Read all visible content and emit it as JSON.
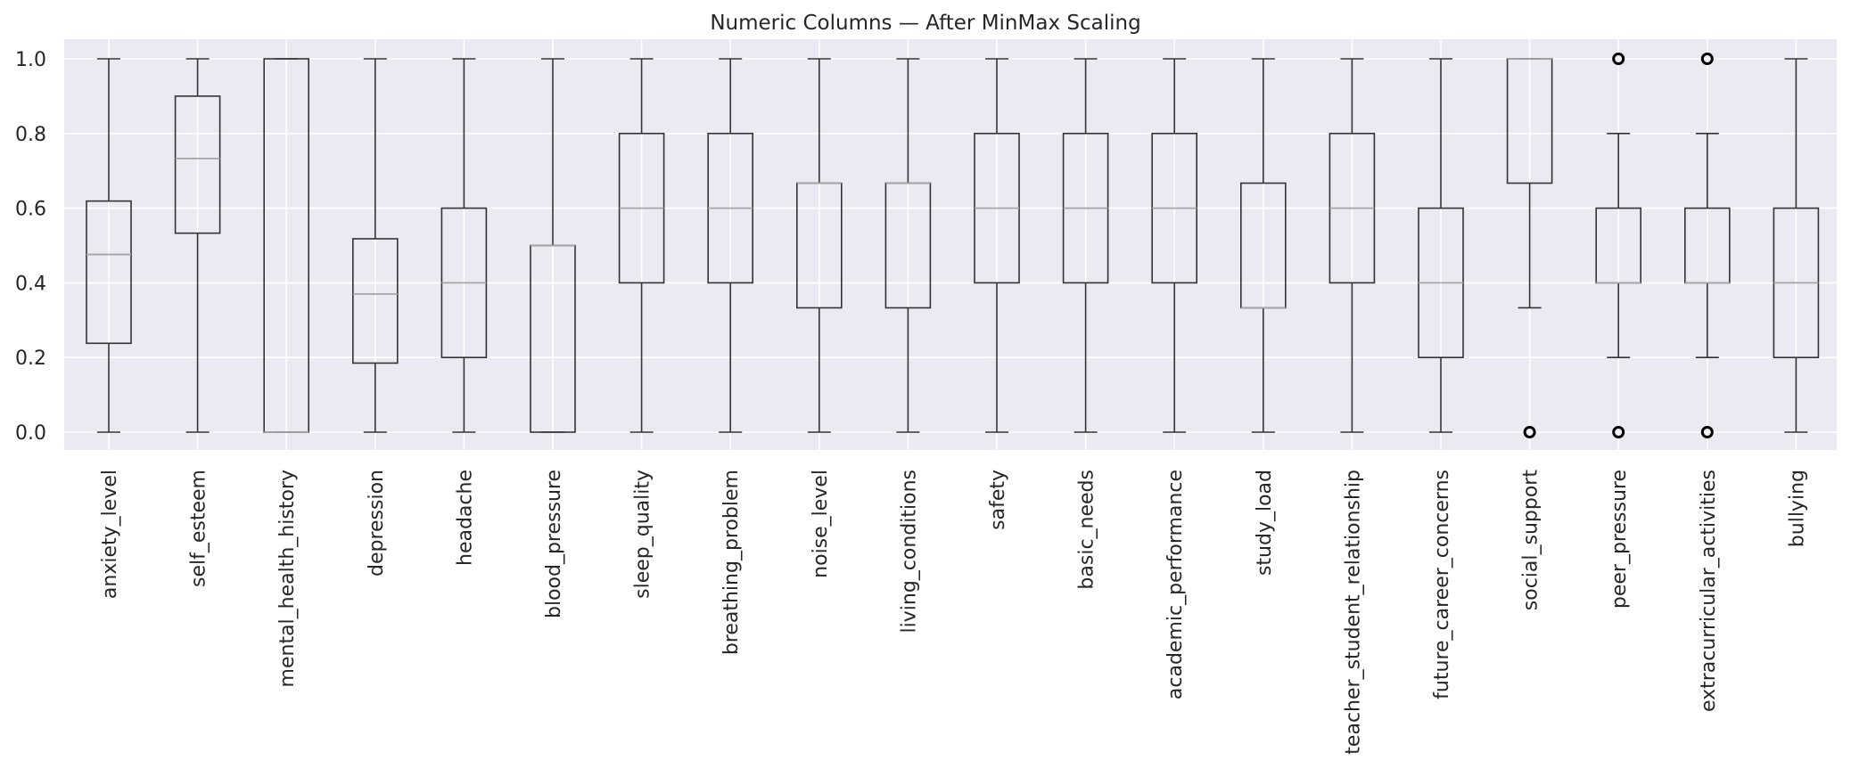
{
  "chart_data": {
    "type": "box",
    "title": "Numeric Columns — After MinMax Scaling",
    "xlabel": "",
    "ylabel": "",
    "ylim": [
      -0.05,
      1.05
    ],
    "yticks": [
      "0.0",
      "0.2",
      "0.4",
      "0.6",
      "0.8",
      "1.0"
    ],
    "ytick_values": [
      0.0,
      0.2,
      0.4,
      0.6,
      0.8,
      1.0
    ],
    "grid": true,
    "style": {
      "background": "#eaeaf2",
      "grid": "#ffffff",
      "box": "#333333",
      "median": "#a6a6a6"
    },
    "series": [
      {
        "category": "anxiety_level",
        "whislo": 0.0,
        "q1": 0.238,
        "median": 0.476,
        "q3": 0.619,
        "whishi": 1.0,
        "fliers": []
      },
      {
        "category": "self_esteem",
        "whislo": 0.0,
        "q1": 0.533,
        "median": 0.733,
        "q3": 0.9,
        "whishi": 1.0,
        "fliers": []
      },
      {
        "category": "mental_health_history",
        "whislo": 0.0,
        "q1": 0.0,
        "median": 0.0,
        "q3": 1.0,
        "whishi": 1.0,
        "fliers": []
      },
      {
        "category": "depression",
        "whislo": 0.0,
        "q1": 0.185,
        "median": 0.37,
        "q3": 0.518,
        "whishi": 1.0,
        "fliers": []
      },
      {
        "category": "headache",
        "whislo": 0.0,
        "q1": 0.2,
        "median": 0.4,
        "q3": 0.6,
        "whishi": 1.0,
        "fliers": []
      },
      {
        "category": "blood_pressure",
        "whislo": 0.0,
        "q1": 0.0,
        "median": 0.5,
        "q3": 0.5,
        "whishi": 1.0,
        "fliers": []
      },
      {
        "category": "sleep_quality",
        "whislo": 0.0,
        "q1": 0.4,
        "median": 0.6,
        "q3": 0.8,
        "whishi": 1.0,
        "fliers": []
      },
      {
        "category": "breathing_problem",
        "whislo": 0.0,
        "q1": 0.4,
        "median": 0.6,
        "q3": 0.8,
        "whishi": 1.0,
        "fliers": []
      },
      {
        "category": "noise_level",
        "whislo": 0.0,
        "q1": 0.333,
        "median": 0.667,
        "q3": 0.667,
        "whishi": 1.0,
        "fliers": []
      },
      {
        "category": "living_conditions",
        "whislo": 0.0,
        "q1": 0.333,
        "median": 0.667,
        "q3": 0.667,
        "whishi": 1.0,
        "fliers": []
      },
      {
        "category": "safety",
        "whislo": 0.0,
        "q1": 0.4,
        "median": 0.6,
        "q3": 0.8,
        "whishi": 1.0,
        "fliers": []
      },
      {
        "category": "basic_needs",
        "whislo": 0.0,
        "q1": 0.4,
        "median": 0.6,
        "q3": 0.8,
        "whishi": 1.0,
        "fliers": []
      },
      {
        "category": "academic_performance",
        "whislo": 0.0,
        "q1": 0.4,
        "median": 0.6,
        "q3": 0.8,
        "whishi": 1.0,
        "fliers": []
      },
      {
        "category": "study_load",
        "whislo": 0.0,
        "q1": 0.333,
        "median": 0.333,
        "q3": 0.667,
        "whishi": 1.0,
        "fliers": []
      },
      {
        "category": "teacher_student_relationship",
        "whislo": 0.0,
        "q1": 0.4,
        "median": 0.6,
        "q3": 0.8,
        "whishi": 1.0,
        "fliers": []
      },
      {
        "category": "future_career_concerns",
        "whislo": 0.0,
        "q1": 0.2,
        "median": 0.4,
        "q3": 0.6,
        "whishi": 1.0,
        "fliers": []
      },
      {
        "category": "social_support",
        "whislo": 0.333,
        "q1": 0.667,
        "median": 1.0,
        "q3": 1.0,
        "whishi": 1.0,
        "fliers": [
          0.0
        ]
      },
      {
        "category": "peer_pressure",
        "whislo": 0.2,
        "q1": 0.4,
        "median": 0.4,
        "q3": 0.6,
        "whishi": 0.8,
        "fliers": [
          0.0,
          1.0
        ]
      },
      {
        "category": "extracurricular_activities",
        "whislo": 0.2,
        "q1": 0.4,
        "median": 0.4,
        "q3": 0.6,
        "whishi": 0.8,
        "fliers": [
          0.0,
          1.0
        ]
      },
      {
        "category": "bullying",
        "whislo": 0.0,
        "q1": 0.2,
        "median": 0.4,
        "q3": 0.6,
        "whishi": 1.0,
        "fliers": []
      }
    ]
  }
}
